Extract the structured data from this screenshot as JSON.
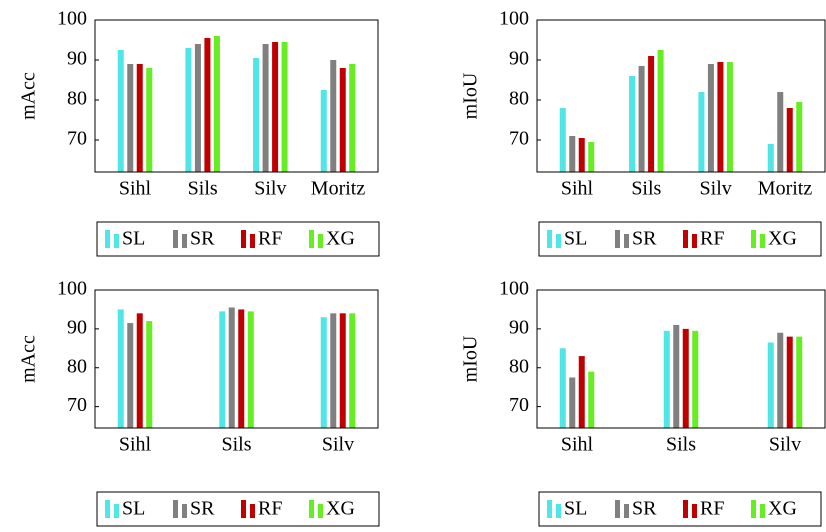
{
  "chart_data": [
    {
      "type": "bar",
      "ylabel": "mAcc",
      "categories": [
        "Sihl",
        "Sils",
        "Silv",
        "Moritz"
      ],
      "series": [
        {
          "name": "SL",
          "color": "#4ee6e6",
          "values": [
            92.5,
            93,
            90.5,
            82.5
          ]
        },
        {
          "name": "SR",
          "color": "#808080",
          "values": [
            89,
            94,
            94,
            90
          ]
        },
        {
          "name": "RF",
          "color": "#c00000",
          "values": [
            89,
            95.5,
            94.5,
            88
          ]
        },
        {
          "name": "XG",
          "color": "#66ee22",
          "values": [
            88,
            96,
            94.5,
            89
          ]
        }
      ],
      "ylim": [
        62,
        100
      ],
      "yticks": [
        70,
        80,
        90,
        100
      ]
    },
    {
      "type": "bar",
      "ylabel": "mIoU",
      "categories": [
        "Sihl",
        "Sils",
        "Silv",
        "Moritz"
      ],
      "series": [
        {
          "name": "SL",
          "color": "#4ee6e6",
          "values": [
            78,
            86,
            82,
            69
          ]
        },
        {
          "name": "SR",
          "color": "#808080",
          "values": [
            71,
            88.5,
            89,
            82
          ]
        },
        {
          "name": "RF",
          "color": "#c00000",
          "values": [
            70.5,
            91,
            89.5,
            78
          ]
        },
        {
          "name": "XG",
          "color": "#66ee22",
          "values": [
            69.5,
            92.5,
            89.5,
            79.5
          ]
        }
      ],
      "ylim": [
        62,
        100
      ],
      "yticks": [
        70,
        80,
        90,
        100
      ]
    },
    {
      "type": "bar",
      "ylabel": "mAcc",
      "categories": [
        "Sihl",
        "Sils",
        "Silv"
      ],
      "series": [
        {
          "name": "SL",
          "color": "#4ee6e6",
          "values": [
            95,
            94.5,
            93
          ]
        },
        {
          "name": "SR",
          "color": "#808080",
          "values": [
            91.5,
            95.5,
            94
          ]
        },
        {
          "name": "RF",
          "color": "#c00000",
          "values": [
            94,
            95,
            94
          ]
        },
        {
          "name": "XG",
          "color": "#66ee22",
          "values": [
            92,
            94.5,
            94
          ]
        }
      ],
      "ylim": [
        64.5,
        100
      ],
      "yticks": [
        70,
        80,
        90,
        100
      ]
    },
    {
      "type": "bar",
      "ylabel": "mIoU",
      "categories": [
        "Sihl",
        "Sils",
        "Silv"
      ],
      "series": [
        {
          "name": "SL",
          "color": "#4ee6e6",
          "values": [
            85,
            89.5,
            86.5
          ]
        },
        {
          "name": "SR",
          "color": "#808080",
          "values": [
            77.5,
            91,
            89
          ]
        },
        {
          "name": "RF",
          "color": "#c00000",
          "values": [
            83,
            90,
            88
          ]
        },
        {
          "name": "XG",
          "color": "#66ee22",
          "values": [
            79,
            89.5,
            88
          ]
        }
      ],
      "ylim": [
        64.5,
        100
      ],
      "yticks": [
        70,
        80,
        90,
        100
      ]
    }
  ]
}
